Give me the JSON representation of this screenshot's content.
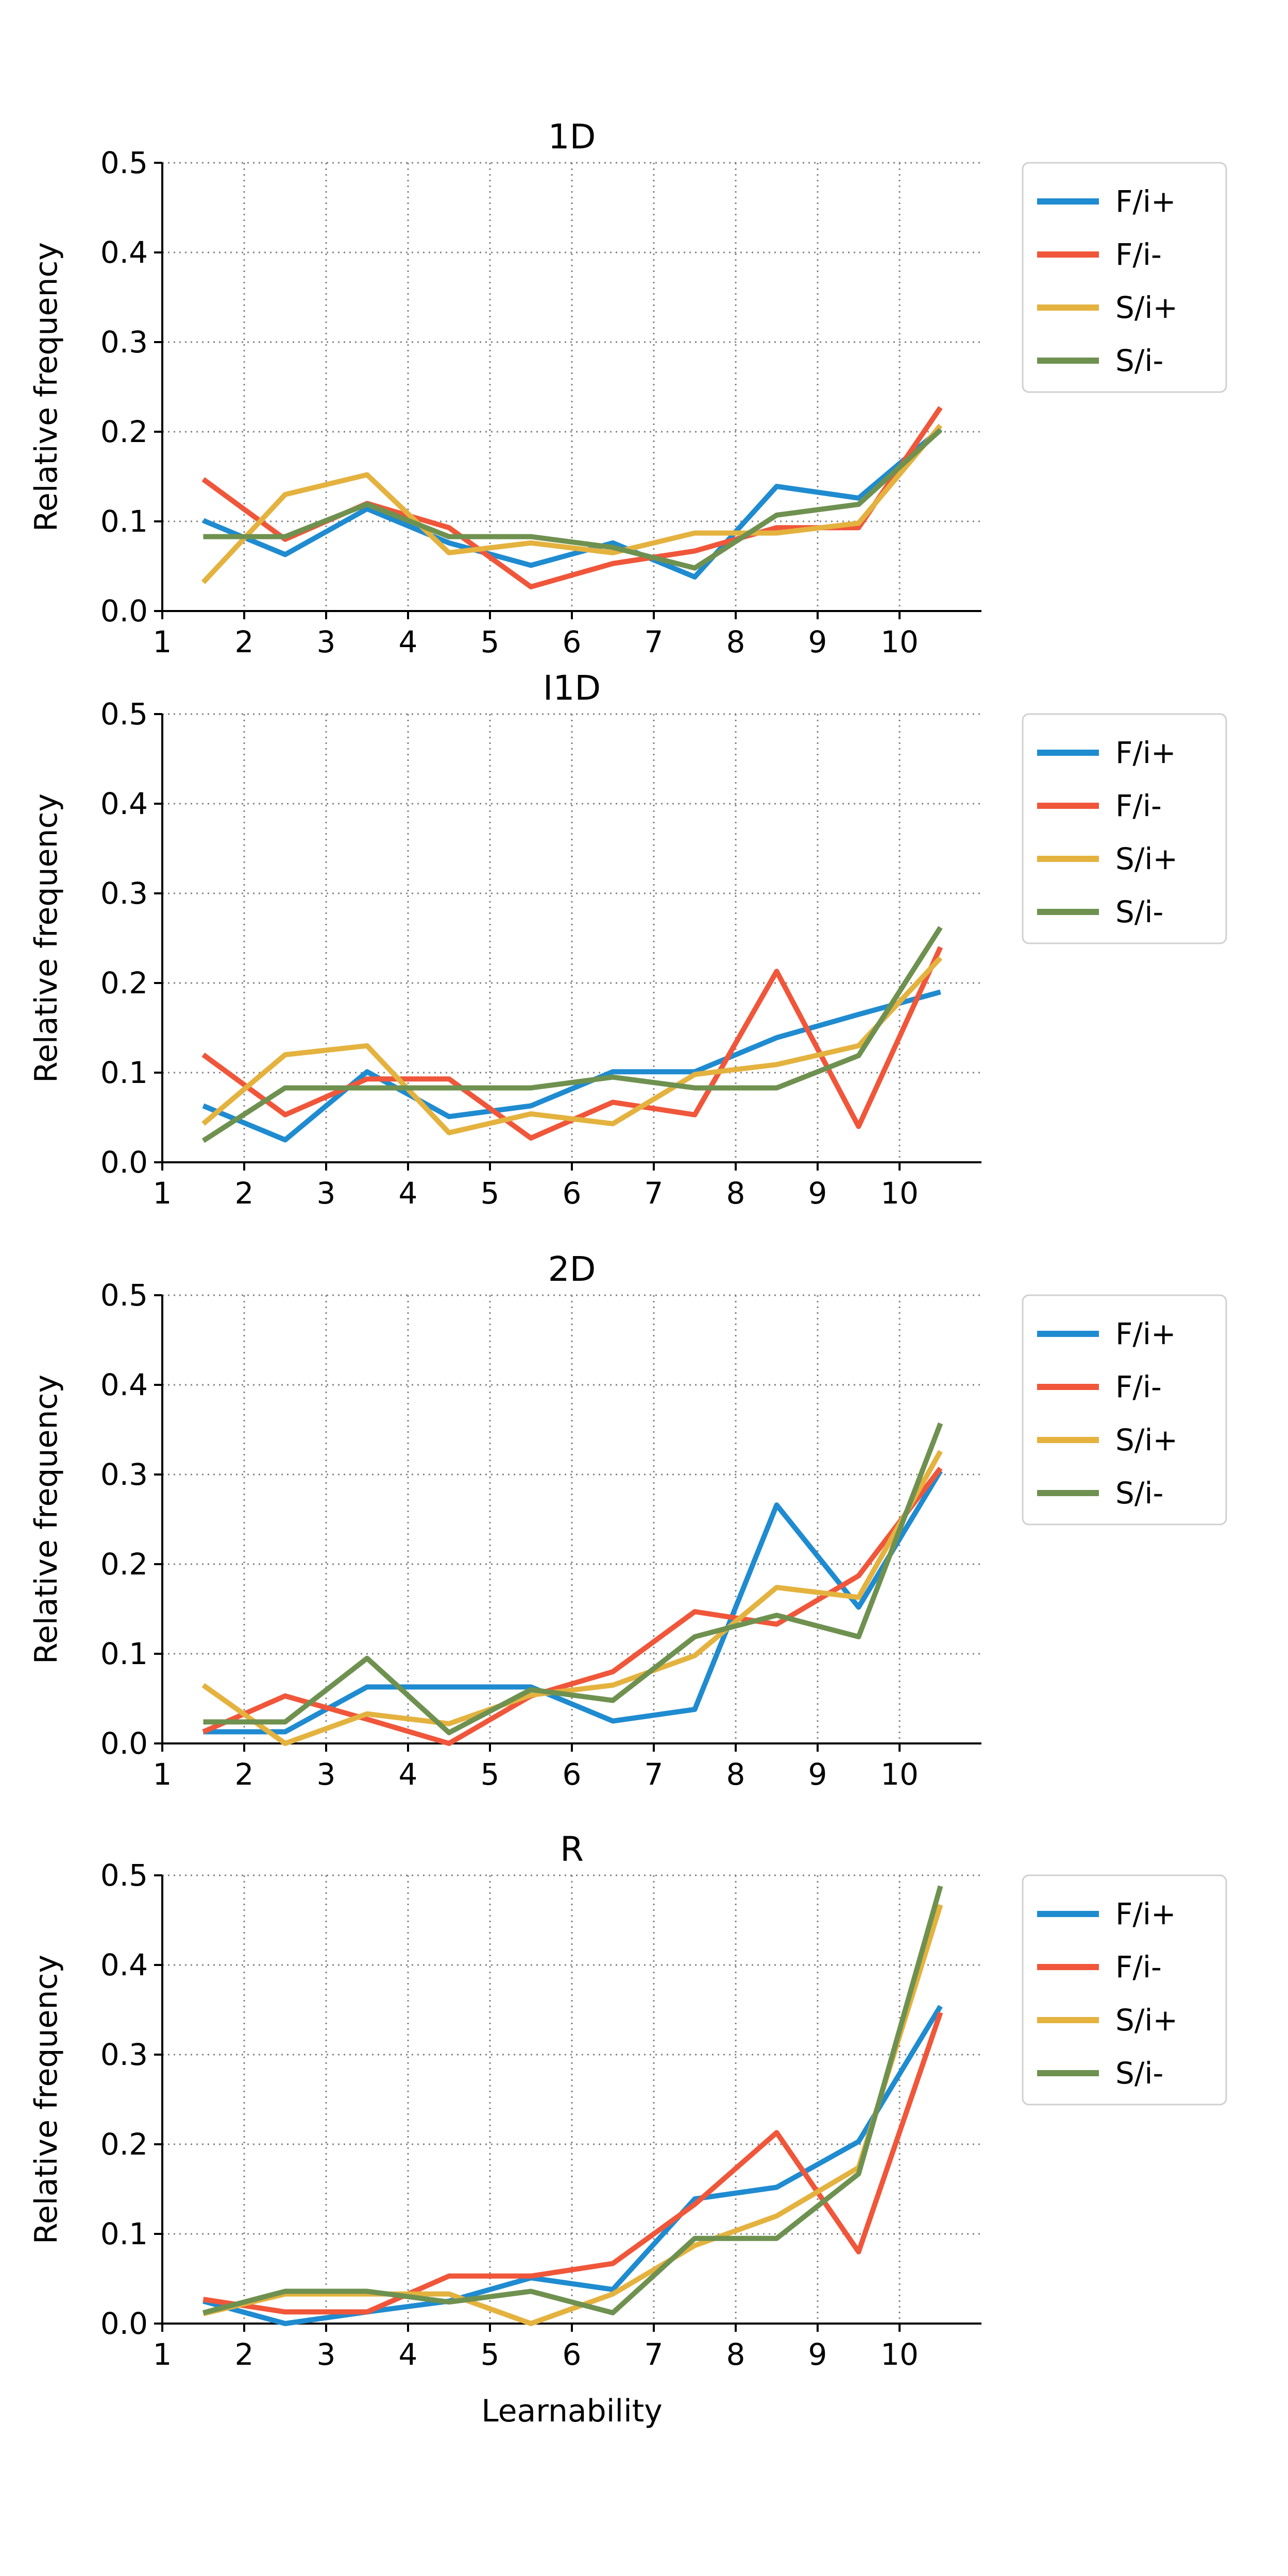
{
  "colors": {
    "F/i+": "#1f8bd0",
    "F/i-": "#f0563a",
    "S/i+": "#e4b23e",
    "S/i-": "#6f9150"
  },
  "chart_data": [
    {
      "type": "line",
      "title": "1D",
      "xlabel": "",
      "ylabel": "Relative frequency",
      "xlim": [
        1,
        11
      ],
      "ylim": [
        0,
        0.5
      ],
      "xticks": [
        "1",
        "2",
        "3",
        "4",
        "5",
        "6",
        "7",
        "8",
        "9",
        "10"
      ],
      "yticks": [
        "0.0",
        "0.1",
        "0.2",
        "0.3",
        "0.4",
        "0.5"
      ],
      "grid": true,
      "legend": "outside-right-top",
      "x": [
        1.5,
        2.5,
        3.5,
        4.5,
        5.5,
        6.5,
        7.5,
        8.5,
        9.5,
        10.5
      ],
      "series": [
        {
          "name": "F/i+",
          "values": [
            0.101,
            0.063,
            0.114,
            0.076,
            0.051,
            0.076,
            0.038,
            0.139,
            0.126,
            0.203
          ]
        },
        {
          "name": "F/i-",
          "values": [
            0.147,
            0.08,
            0.12,
            0.093,
            0.027,
            0.053,
            0.067,
            0.093,
            0.093,
            0.227
          ]
        },
        {
          "name": "S/i+",
          "values": [
            0.032,
            0.13,
            0.152,
            0.065,
            0.076,
            0.065,
            0.087,
            0.087,
            0.098,
            0.207
          ]
        },
        {
          "name": "S/i-",
          "values": [
            0.083,
            0.083,
            0.119,
            0.083,
            0.083,
            0.071,
            0.048,
            0.107,
            0.119,
            0.202
          ]
        }
      ]
    },
    {
      "type": "line",
      "title": "I1D",
      "xlabel": "",
      "ylabel": "Relative frequency",
      "xlim": [
        1,
        11
      ],
      "ylim": [
        0,
        0.5
      ],
      "xticks": [
        "1",
        "2",
        "3",
        "4",
        "5",
        "6",
        "7",
        "8",
        "9",
        "10"
      ],
      "yticks": [
        "0.0",
        "0.1",
        "0.2",
        "0.3",
        "0.4",
        "0.5"
      ],
      "grid": true,
      "legend": "outside-right-top",
      "x": [
        1.5,
        2.5,
        3.5,
        4.5,
        5.5,
        6.5,
        7.5,
        8.5,
        9.5,
        10.5
      ],
      "series": [
        {
          "name": "F/i+",
          "values": [
            0.063,
            0.025,
            0.101,
            0.051,
            0.063,
            0.101,
            0.101,
            0.139,
            0.165,
            0.19
          ]
        },
        {
          "name": "F/i-",
          "values": [
            0.12,
            0.053,
            0.093,
            0.093,
            0.027,
            0.067,
            0.053,
            0.213,
            0.04,
            0.24
          ]
        },
        {
          "name": "S/i+",
          "values": [
            0.043,
            0.12,
            0.13,
            0.033,
            0.054,
            0.043,
            0.098,
            0.109,
            0.13,
            0.228
          ]
        },
        {
          "name": "S/i-",
          "values": [
            0.024,
            0.083,
            0.083,
            0.083,
            0.083,
            0.095,
            0.083,
            0.083,
            0.119,
            0.262
          ]
        }
      ]
    },
    {
      "type": "line",
      "title": "2D",
      "xlabel": "",
      "ylabel": "Relative frequency",
      "xlim": [
        1,
        11
      ],
      "ylim": [
        0,
        0.5
      ],
      "xticks": [
        "1",
        "2",
        "3",
        "4",
        "5",
        "6",
        "7",
        "8",
        "9",
        "10"
      ],
      "yticks": [
        "0.0",
        "0.1",
        "0.2",
        "0.3",
        "0.4",
        "0.5"
      ],
      "grid": true,
      "legend": "outside-right-top",
      "x": [
        1.5,
        2.5,
        3.5,
        4.5,
        5.5,
        6.5,
        7.5,
        8.5,
        9.5,
        10.5
      ],
      "series": [
        {
          "name": "F/i+",
          "values": [
            0.013,
            0.013,
            0.063,
            0.063,
            0.063,
            0.025,
            0.038,
            0.266,
            0.152,
            0.304
          ]
        },
        {
          "name": "F/i-",
          "values": [
            0.013,
            0.053,
            0.027,
            0.0,
            0.053,
            0.08,
            0.147,
            0.133,
            0.187,
            0.307
          ]
        },
        {
          "name": "S/i+",
          "values": [
            0.065,
            0.0,
            0.033,
            0.022,
            0.054,
            0.065,
            0.098,
            0.174,
            0.163,
            0.326
          ]
        },
        {
          "name": "S/i-",
          "values": [
            0.024,
            0.024,
            0.095,
            0.012,
            0.06,
            0.048,
            0.119,
            0.143,
            0.119,
            0.357
          ]
        }
      ]
    },
    {
      "type": "line",
      "title": "R",
      "xlabel": "Learnability",
      "ylabel": "Relative frequency",
      "xlim": [
        1,
        11
      ],
      "ylim": [
        0,
        0.5
      ],
      "xticks": [
        "1",
        "2",
        "3",
        "4",
        "5",
        "6",
        "7",
        "8",
        "9",
        "10"
      ],
      "yticks": [
        "0.0",
        "0.1",
        "0.2",
        "0.3",
        "0.4",
        "0.5"
      ],
      "grid": true,
      "legend": "outside-right-top",
      "x": [
        1.5,
        2.5,
        3.5,
        4.5,
        5.5,
        6.5,
        7.5,
        8.5,
        9.5,
        10.5
      ],
      "series": [
        {
          "name": "F/i+",
          "values": [
            0.025,
            0.0,
            0.013,
            0.025,
            0.051,
            0.038,
            0.139,
            0.152,
            0.203,
            0.354
          ]
        },
        {
          "name": "F/i-",
          "values": [
            0.027,
            0.013,
            0.013,
            0.053,
            0.053,
            0.067,
            0.133,
            0.213,
            0.08,
            0.347
          ]
        },
        {
          "name": "S/i+",
          "values": [
            0.011,
            0.033,
            0.033,
            0.033,
            0.0,
            0.033,
            0.087,
            0.12,
            0.174,
            0.467
          ]
        },
        {
          "name": "S/i-",
          "values": [
            0.012,
            0.036,
            0.036,
            0.024,
            0.036,
            0.012,
            0.095,
            0.095,
            0.167,
            0.488
          ]
        }
      ]
    }
  ]
}
